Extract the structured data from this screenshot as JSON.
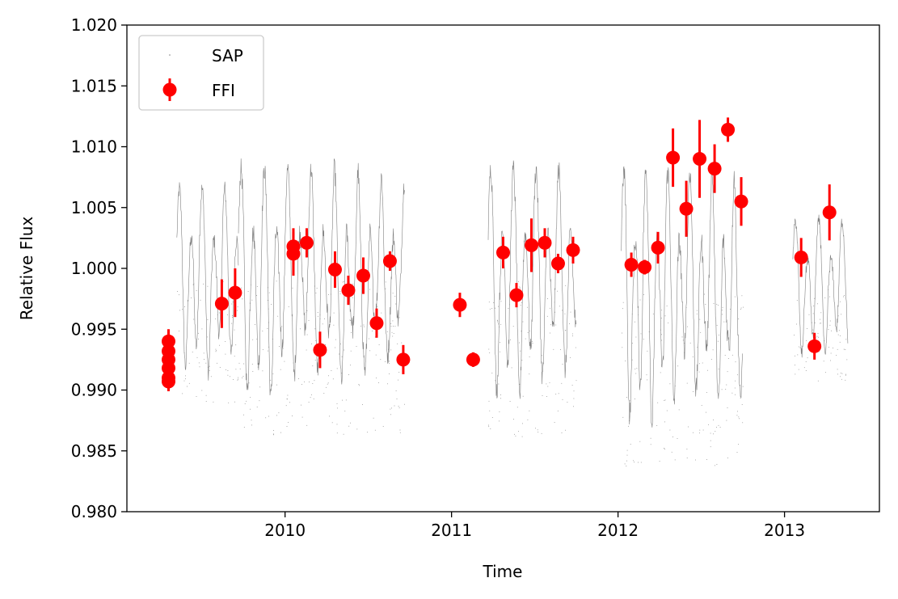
{
  "chart_data": {
    "type": "scatter",
    "xlabel": "Time",
    "ylabel": "Relative Flux",
    "xlim": [
      2009.05,
      2013.57
    ],
    "ylim": [
      0.98,
      1.02
    ],
    "x_ticks": [
      2010,
      2011,
      2012,
      2013
    ],
    "x_tick_labels": [
      "2010",
      "2011",
      "2012",
      "2013"
    ],
    "y_ticks": [
      0.98,
      0.985,
      0.99,
      0.995,
      1.0,
      1.005,
      1.01,
      1.015,
      1.02
    ],
    "y_tick_labels": [
      "0.980",
      "0.985",
      "0.990",
      "0.995",
      "1.000",
      "1.005",
      "1.010",
      "1.015",
      "1.020"
    ],
    "legend": {
      "position": "upper-left",
      "entries": [
        "SAP",
        "FFI"
      ]
    },
    "grid": false,
    "colors": {
      "SAP": "#808080",
      "FFI": "#ff0000"
    },
    "series": [
      {
        "name": "SAP",
        "kind": "dense-line",
        "segments": [
          {
            "x_start": 2009.35,
            "x_end": 2009.72,
            "mean": 1.0,
            "amplitude": 0.008,
            "period": 0.068
          },
          {
            "x_start": 2009.72,
            "x_end": 2010.72,
            "mean": 1.0,
            "amplitude": 0.01,
            "period": 0.07
          },
          {
            "x_start": 2011.22,
            "x_end": 2011.75,
            "mean": 1.0,
            "amplitude": 0.01,
            "period": 0.068
          },
          {
            "x_start": 2012.02,
            "x_end": 2012.75,
            "mean": 0.999,
            "amplitude": 0.011,
            "period": 0.066
          },
          {
            "x_start": 2013.05,
            "x_end": 2013.38,
            "mean": 0.999,
            "amplitude": 0.006,
            "period": 0.07
          }
        ]
      },
      {
        "name": "FFI",
        "kind": "errorbar",
        "points": [
          {
            "x": 2009.3,
            "y": 0.994,
            "err": 0.001
          },
          {
            "x": 2009.3,
            "y": 0.9932,
            "err": 0.0008
          },
          {
            "x": 2009.3,
            "y": 0.9925,
            "err": 0.0008
          },
          {
            "x": 2009.3,
            "y": 0.9918,
            "err": 0.0008
          },
          {
            "x": 2009.3,
            "y": 0.991,
            "err": 0.0008
          },
          {
            "x": 2009.3,
            "y": 0.9907,
            "err": 0.0008
          },
          {
            "x": 2009.62,
            "y": 0.9971,
            "err": 0.002
          },
          {
            "x": 2009.7,
            "y": 0.998,
            "err": 0.002
          },
          {
            "x": 2010.05,
            "y": 1.0012,
            "err": 0.0018
          },
          {
            "x": 2010.05,
            "y": 1.0018,
            "err": 0.0015
          },
          {
            "x": 2010.13,
            "y": 1.0021,
            "err": 0.0012
          },
          {
            "x": 2010.21,
            "y": 0.9933,
            "err": 0.0015
          },
          {
            "x": 2010.3,
            "y": 0.9999,
            "err": 0.0015
          },
          {
            "x": 2010.38,
            "y": 0.9982,
            "err": 0.0012
          },
          {
            "x": 2010.47,
            "y": 0.9994,
            "err": 0.0015
          },
          {
            "x": 2010.55,
            "y": 0.9955,
            "err": 0.0012
          },
          {
            "x": 2010.63,
            "y": 1.0006,
            "err": 0.0008
          },
          {
            "x": 2010.71,
            "y": 0.9925,
            "err": 0.0012
          },
          {
            "x": 2011.05,
            "y": 0.997,
            "err": 0.001
          },
          {
            "x": 2011.13,
            "y": 0.9925,
            "err": 0.0006
          },
          {
            "x": 2011.31,
            "y": 1.0013,
            "err": 0.0013
          },
          {
            "x": 2011.39,
            "y": 0.9978,
            "err": 0.001
          },
          {
            "x": 2011.48,
            "y": 1.0019,
            "err": 0.0022
          },
          {
            "x": 2011.56,
            "y": 1.0021,
            "err": 0.0012
          },
          {
            "x": 2011.64,
            "y": 1.0004,
            "err": 0.0008
          },
          {
            "x": 2011.73,
            "y": 1.0015,
            "err": 0.0011
          },
          {
            "x": 2012.08,
            "y": 1.0003,
            "err": 0.001
          },
          {
            "x": 2012.16,
            "y": 1.0001,
            "err": 0.0006
          },
          {
            "x": 2012.24,
            "y": 1.0017,
            "err": 0.0013
          },
          {
            "x": 2012.33,
            "y": 1.0091,
            "err": 0.0024
          },
          {
            "x": 2012.41,
            "y": 1.0049,
            "err": 0.0023
          },
          {
            "x": 2012.49,
            "y": 1.009,
            "err": 0.0032
          },
          {
            "x": 2012.58,
            "y": 1.0082,
            "err": 0.002
          },
          {
            "x": 2012.66,
            "y": 1.0114,
            "err": 0.001
          },
          {
            "x": 2012.74,
            "y": 1.0055,
            "err": 0.002
          },
          {
            "x": 2013.1,
            "y": 1.0009,
            "err": 0.0016
          },
          {
            "x": 2013.18,
            "y": 0.9936,
            "err": 0.0011
          },
          {
            "x": 2013.27,
            "y": 1.0046,
            "err": 0.0023
          }
        ]
      }
    ]
  }
}
